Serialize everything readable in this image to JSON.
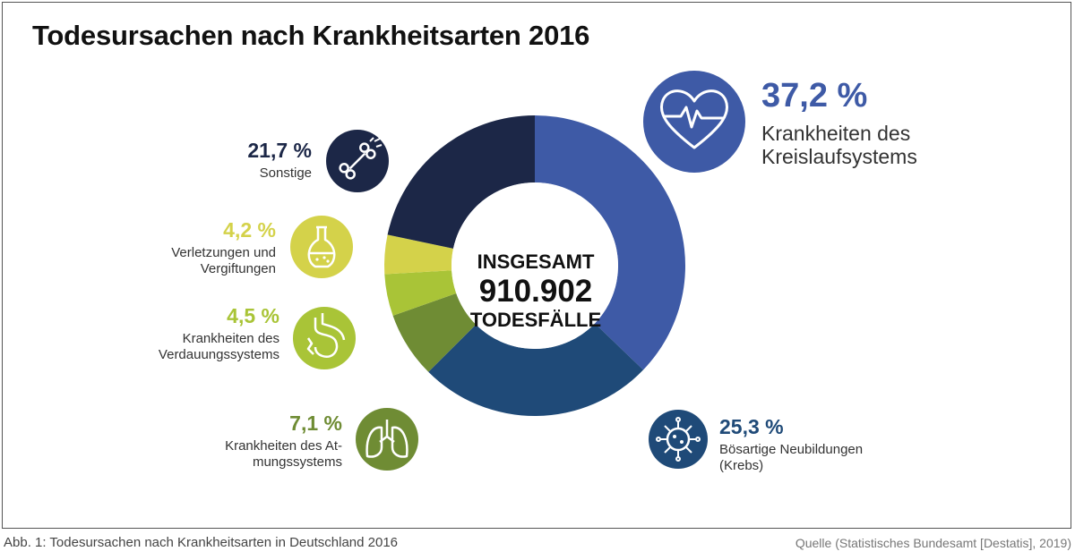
{
  "title": "Todesursachen nach Krankheitsarten 2016",
  "center": {
    "line1": "INSGESAMT",
    "line2": "910.902",
    "line3": "TODESFÄLLE"
  },
  "chart_data": {
    "type": "pie",
    "title": "Todesursachen nach Krankheitsarten 2016",
    "total": "910.902",
    "unit": "%",
    "slices": [
      {
        "key": "kreislauf",
        "value": 37.2,
        "pct_label": "37,2 %",
        "label_lines": [
          "Krankheiten des",
          "Kreislaufsystems"
        ],
        "color": "#3e5aa6",
        "icon": "heart-pulse-icon"
      },
      {
        "key": "krebs",
        "value": 25.3,
        "pct_label": "25,3 %",
        "label_lines": [
          "Bösartige Neubildungen",
          "(Krebs)"
        ],
        "color": "#1f4a78",
        "icon": "virus-cell-icon"
      },
      {
        "key": "atmung",
        "value": 7.1,
        "pct_label": "7,1 %",
        "label_lines": [
          "Krankheiten des At-",
          "mungssystems"
        ],
        "color": "#6f8c34",
        "icon": "lungs-icon"
      },
      {
        "key": "verdauung",
        "value": 4.5,
        "pct_label": "4,5 %",
        "label_lines": [
          "Krankheiten des",
          "Verdauungssystems"
        ],
        "color": "#a9c437",
        "icon": "stomach-icon"
      },
      {
        "key": "verletzung",
        "value": 4.2,
        "pct_label": "4,2 %",
        "label_lines": [
          "Verletzungen und",
          "Vergiftungen"
        ],
        "color": "#d4d24a",
        "icon": "flask-icon"
      },
      {
        "key": "sonstige",
        "value": 21.7,
        "pct_label": "21,7 %",
        "label_lines": [
          "Sonstige"
        ],
        "color": "#1c2747",
        "icon": "bone-icon"
      }
    ]
  },
  "footer": {
    "caption": "Abb. 1: Todesursachen nach Krankheitsarten in Deutschland 2016",
    "source": "Quelle (Statistisches Bundesamt [Destatis], 2019)"
  }
}
